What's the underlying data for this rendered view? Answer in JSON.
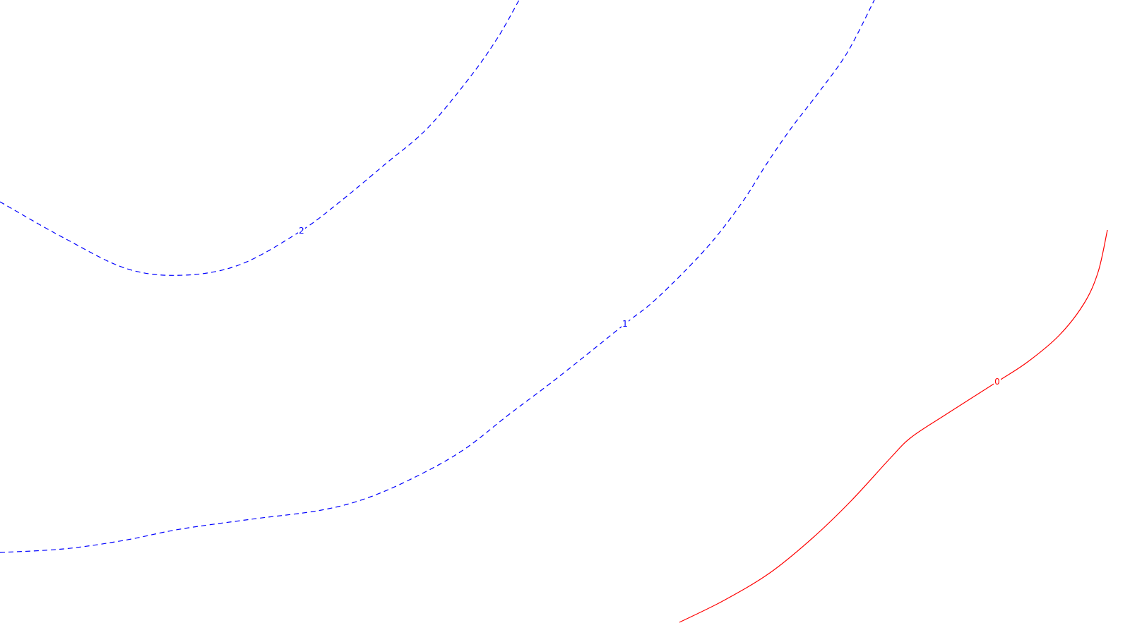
{
  "chart_data": {
    "type": "contour",
    "title": "",
    "xlabel": "",
    "ylabel": "",
    "grid": false,
    "legend": "none",
    "levels": [
      {
        "value": 2,
        "label": "2",
        "color": "#0000ff",
        "style": "dashed",
        "points": [
          [
            0,
            286
          ],
          [
            90,
            337
          ],
          [
            180,
            381
          ],
          [
            260,
            390
          ],
          [
            340,
            375
          ],
          [
            425,
            328
          ],
          [
            480,
            287
          ],
          [
            545,
            233
          ],
          [
            605,
            182
          ],
          [
            665,
            110
          ],
          [
            705,
            53
          ],
          [
            735,
            0
          ]
        ]
      },
      {
        "value": 1,
        "label": "1",
        "color": "#0000ff",
        "style": "dashed",
        "points": [
          [
            0,
            783
          ],
          [
            90,
            778
          ],
          [
            175,
            766
          ],
          [
            255,
            750
          ],
          [
            355,
            736
          ],
          [
            455,
            723
          ],
          [
            525,
            704
          ],
          [
            600,
            670
          ],
          [
            660,
            635
          ],
          [
            720,
            588
          ],
          [
            790,
            535
          ],
          [
            885,
            459
          ],
          [
            930,
            423
          ],
          [
            1000,
            352
          ],
          [
            1050,
            288
          ],
          [
            1085,
            233
          ],
          [
            1120,
            182
          ],
          [
            1160,
            130
          ],
          [
            1200,
            74
          ],
          [
            1238,
            0
          ]
        ]
      },
      {
        "value": 0,
        "label": "0",
        "color": "#ff0000",
        "style": "solid",
        "points": [
          [
            962,
            882
          ],
          [
            1025,
            851
          ],
          [
            1090,
            812
          ],
          [
            1150,
            763
          ],
          [
            1205,
            710
          ],
          [
            1260,
            650
          ],
          [
            1290,
            620
          ],
          [
            1340,
            587
          ],
          [
            1412,
            541
          ],
          [
            1455,
            513
          ],
          [
            1500,
            475
          ],
          [
            1535,
            430
          ],
          [
            1555,
            385
          ],
          [
            1568,
            326
          ]
        ]
      }
    ],
    "label_positions": {
      "2": [
        427,
        327
      ],
      "1": [
        885,
        459
      ],
      "0": [
        1412,
        541
      ]
    }
  }
}
